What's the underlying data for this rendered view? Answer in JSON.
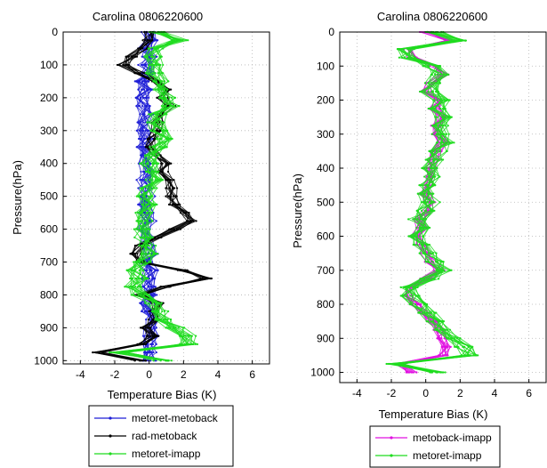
{
  "chart_data": [
    {
      "type": "line",
      "title": "Carolina  0806220600",
      "xlabel": "Temperature Bias (K)",
      "ylabel": "Pressure(hPa)",
      "xlim": [
        -5,
        7
      ],
      "ylim": [
        1010,
        0
      ],
      "xticks": [
        -4,
        -2,
        0,
        2,
        4,
        6
      ],
      "yticks": [
        0,
        100,
        200,
        300,
        400,
        500,
        600,
        700,
        800,
        900,
        1000
      ],
      "grid": true,
      "legend_position": "below",
      "pressure": [
        0,
        25,
        50,
        75,
        100,
        125,
        150,
        175,
        200,
        225,
        250,
        275,
        300,
        325,
        350,
        375,
        400,
        425,
        450,
        475,
        500,
        525,
        550,
        575,
        600,
        625,
        650,
        675,
        700,
        725,
        750,
        775,
        800,
        825,
        850,
        875,
        900,
        925,
        950,
        975,
        1000
      ],
      "series": [
        {
          "name": "metoret-metoback",
          "color": "#1f1fd6",
          "profile": [
            0.0,
            0.1,
            -0.2,
            0.0,
            -0.2,
            0.0,
            -0.4,
            -0.2,
            -0.4,
            -0.3,
            -0.2,
            -0.4,
            -0.3,
            -0.2,
            -0.4,
            -0.2,
            -0.3,
            -0.1,
            -0.3,
            -0.2,
            -0.1,
            -0.3,
            -0.2,
            0.0,
            -0.3,
            -0.1,
            -0.1,
            0.1,
            -0.2,
            0.1,
            -0.1,
            0.0,
            0.1,
            -0.1,
            0.0,
            0.2,
            0.0,
            0.1,
            0.0,
            0.1,
            0.0
          ]
        },
        {
          "name": "rad-metoback",
          "color": "#000000",
          "profile": [
            0.0,
            -0.1,
            -0.3,
            -1.0,
            -1.5,
            -0.5,
            0.5,
            1.0,
            0.8,
            1.2,
            0.6,
            0.5,
            0.4,
            0.2,
            0.1,
            0.5,
            1.0,
            0.8,
            1.1,
            1.3,
            1.3,
            1.5,
            2.0,
            2.5,
            1.5,
            0.5,
            -0.5,
            -0.8,
            -0.5,
            2.0,
            3.3,
            1.0,
            -0.5,
            0.5,
            0.2,
            0.3,
            -0.2,
            0.2,
            -0.5,
            -3.0,
            -0.5
          ]
        },
        {
          "name": "metoret-imapp",
          "color": "#1fdc1f",
          "profile": [
            0.5,
            1.8,
            0.5,
            0.2,
            0.5,
            0.3,
            0.8,
            0.6,
            1.0,
            1.2,
            0.5,
            0.4,
            0.6,
            0.8,
            0.5,
            0.3,
            0.0,
            0.1,
            0.3,
            0.0,
            -0.2,
            0.1,
            -0.3,
            -0.2,
            -0.4,
            -0.3,
            -0.1,
            0.0,
            -0.4,
            -0.8,
            -0.6,
            -0.9,
            -0.5,
            0.2,
            0.7,
            0.9,
            1.5,
            2.2,
            2.3,
            -1.8,
            0.8
          ]
        }
      ]
    },
    {
      "type": "line",
      "title": "Carolina  0806220600",
      "xlabel": "Temperature Bias (K)",
      "ylabel": "Pressure(hPa)",
      "xlim": [
        -5,
        7
      ],
      "ylim": [
        1030,
        0
      ],
      "xticks": [
        -4,
        -2,
        0,
        2,
        4,
        6
      ],
      "yticks": [
        0,
        100,
        200,
        300,
        400,
        500,
        600,
        700,
        800,
        900,
        1000
      ],
      "grid": true,
      "legend_position": "below",
      "pressure": [
        0,
        25,
        50,
        75,
        100,
        125,
        150,
        175,
        200,
        225,
        250,
        275,
        300,
        325,
        350,
        375,
        400,
        425,
        450,
        475,
        500,
        525,
        550,
        575,
        600,
        625,
        650,
        675,
        700,
        725,
        750,
        775,
        800,
        825,
        850,
        875,
        900,
        925,
        950,
        975,
        1000
      ],
      "series": [
        {
          "name": "metoback-imapp",
          "color": "#e010e0",
          "profile": [
            0.0,
            1.5,
            -1.0,
            -0.8,
            0.5,
            1.0,
            0.3,
            0.0,
            0.8,
            0.5,
            0.9,
            0.6,
            0.7,
            1.0,
            0.6,
            0.5,
            0.3,
            0.4,
            0.2,
            0.0,
            0.2,
            0.1,
            -0.4,
            -0.2,
            -0.6,
            -0.3,
            0.0,
            0.3,
            0.8,
            0.0,
            -0.9,
            -1.0,
            -0.6,
            -0.1,
            0.4,
            0.8,
            1.0,
            1.2,
            1.0,
            -1.5,
            -0.8
          ]
        },
        {
          "name": "metoret-imapp",
          "color": "#1fdc1f",
          "profile": [
            0.5,
            1.8,
            -1.2,
            -1.0,
            0.3,
            0.8,
            0.5,
            0.2,
            0.9,
            0.6,
            1.0,
            0.8,
            0.9,
            1.1,
            0.7,
            0.5,
            0.2,
            0.3,
            0.1,
            -0.1,
            0.3,
            0.0,
            -0.5,
            -0.3,
            -0.5,
            -0.2,
            0.1,
            0.5,
            1.0,
            0.2,
            -1.0,
            -0.9,
            -0.4,
            0.1,
            0.6,
            1.0,
            1.5,
            2.2,
            2.5,
            -1.8,
            0.8
          ]
        }
      ]
    }
  ]
}
